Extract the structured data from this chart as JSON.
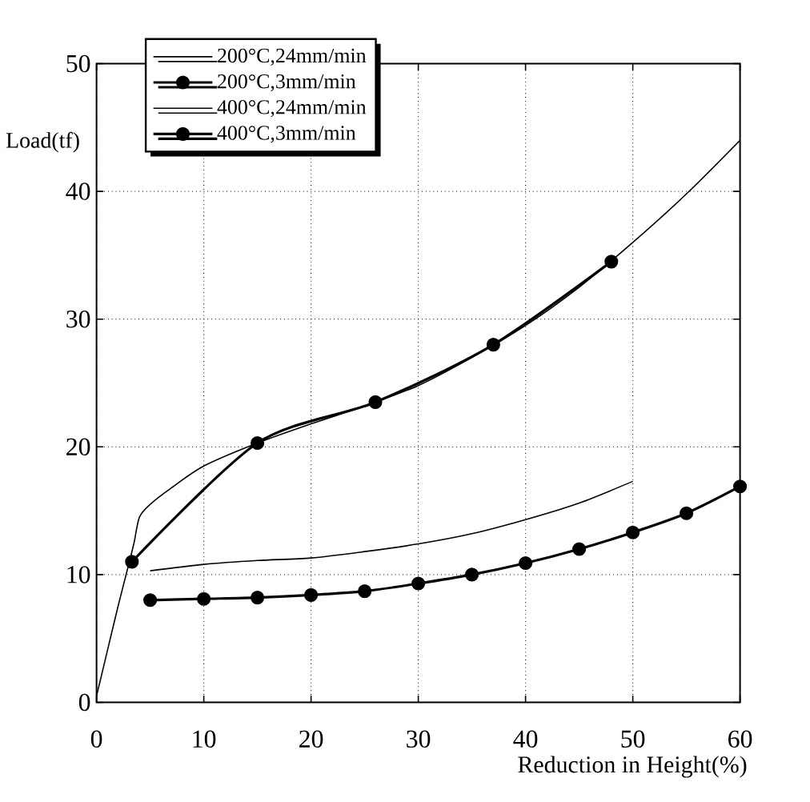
{
  "chart_data": {
    "type": "line",
    "xlabel": "Reduction in Height(%)",
    "ylabel": "Load(tf)",
    "xlim": [
      0,
      60
    ],
    "ylim": [
      0,
      50
    ],
    "xticks": [
      0,
      10,
      20,
      30,
      40,
      50,
      60
    ],
    "yticks": [
      0,
      10,
      20,
      30,
      40,
      50
    ],
    "grid": true,
    "legend": "top left",
    "line_style": "solid",
    "series": [
      {
        "name": "200°C,24mm/min",
        "color": "#000000",
        "marker": "none",
        "x": [
          0,
          1,
          2,
          3,
          3.5,
          4,
          5,
          7,
          10,
          15,
          20,
          25,
          30,
          35,
          40,
          45,
          50,
          55,
          60
        ],
        "values": [
          0.5,
          4,
          7.5,
          10.8,
          12.5,
          14.5,
          15.5,
          16.8,
          18.5,
          20.3,
          21.8,
          23.2,
          24.8,
          27,
          29.5,
          32.5,
          36,
          39.8,
          44
        ]
      },
      {
        "name": "200°C,3mm/min",
        "color": "#000000",
        "marker": "circle",
        "x": [
          3.3,
          15,
          26,
          37,
          48
        ],
        "values": [
          11,
          20.3,
          23.5,
          28,
          34.5
        ]
      },
      {
        "name": "400°C,24mm/min",
        "color": "#000000",
        "marker": "none",
        "x": [
          5,
          10,
          15,
          20,
          25,
          30,
          35,
          40,
          45,
          50
        ],
        "values": [
          10.3,
          10.8,
          11.1,
          11.3,
          11.8,
          12.4,
          13.2,
          14.3,
          15.6,
          17.3
        ]
      },
      {
        "name": "400°C,3mm/min",
        "color": "#000000",
        "marker": "circle",
        "x": [
          5,
          10,
          15,
          20,
          25,
          30,
          35,
          40,
          45,
          50,
          55,
          60
        ],
        "values": [
          8.0,
          8.1,
          8.2,
          8.4,
          8.7,
          9.3,
          10.0,
          10.9,
          12.0,
          13.3,
          14.8,
          16.9
        ]
      }
    ]
  }
}
